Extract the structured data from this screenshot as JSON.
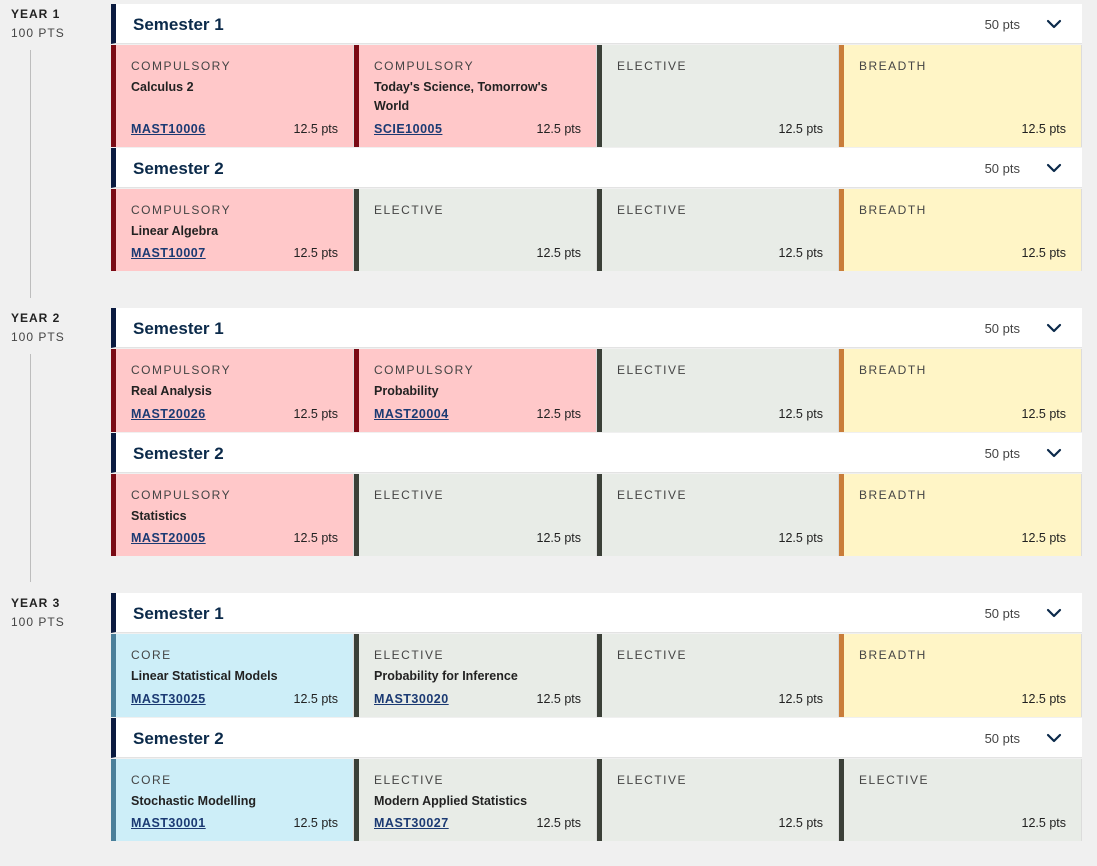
{
  "years": [
    {
      "label": "YEAR 1",
      "points": "100 PTS"
    },
    {
      "label": "YEAR 2",
      "points": "100 PTS"
    },
    {
      "label": "YEAR 3",
      "points": "100 PTS"
    }
  ],
  "semesters": [
    {
      "title": "Semester 1",
      "points": "50 pts",
      "subjects": [
        {
          "type": "COMPULSORY",
          "name": "Calculus 2",
          "code": "MAST10006",
          "points": "12.5 pts",
          "kind": "comp"
        },
        {
          "type": "COMPULSORY",
          "name": "Today's Science, Tomorrow's World",
          "code": "SCIE10005",
          "points": "12.5 pts",
          "kind": "comp"
        },
        {
          "type": "ELECTIVE",
          "name": "",
          "code": "",
          "points": "12.5 pts",
          "kind": "elec"
        },
        {
          "type": "BREADTH",
          "name": "",
          "code": "",
          "points": "12.5 pts",
          "kind": "bread"
        }
      ]
    },
    {
      "title": "Semester 2",
      "points": "50 pts",
      "subjects": [
        {
          "type": "COMPULSORY",
          "name": "Linear Algebra",
          "code": "MAST10007",
          "points": "12.5 pts",
          "kind": "comp"
        },
        {
          "type": "ELECTIVE",
          "name": "",
          "code": "",
          "points": "12.5 pts",
          "kind": "elec"
        },
        {
          "type": "ELECTIVE",
          "name": "",
          "code": "",
          "points": "12.5 pts",
          "kind": "elec"
        },
        {
          "type": "BREADTH",
          "name": "",
          "code": "",
          "points": "12.5 pts",
          "kind": "bread"
        }
      ]
    },
    {
      "title": "Semester 1",
      "points": "50 pts",
      "subjects": [
        {
          "type": "COMPULSORY",
          "name": "Real Analysis",
          "code": "MAST20026",
          "points": "12.5 pts",
          "kind": "comp"
        },
        {
          "type": "COMPULSORY",
          "name": "Probability",
          "code": "MAST20004",
          "points": "12.5 pts",
          "kind": "comp"
        },
        {
          "type": "ELECTIVE",
          "name": "",
          "code": "",
          "points": "12.5 pts",
          "kind": "elec"
        },
        {
          "type": "BREADTH",
          "name": "",
          "code": "",
          "points": "12.5 pts",
          "kind": "bread"
        }
      ]
    },
    {
      "title": "Semester 2",
      "points": "50 pts",
      "subjects": [
        {
          "type": "COMPULSORY",
          "name": "Statistics",
          "code": "MAST20005",
          "points": "12.5 pts",
          "kind": "comp"
        },
        {
          "type": "ELECTIVE",
          "name": "",
          "code": "",
          "points": "12.5 pts",
          "kind": "elec"
        },
        {
          "type": "ELECTIVE",
          "name": "",
          "code": "",
          "points": "12.5 pts",
          "kind": "elec"
        },
        {
          "type": "BREADTH",
          "name": "",
          "code": "",
          "points": "12.5 pts",
          "kind": "bread"
        }
      ]
    },
    {
      "title": "Semester 1",
      "points": "50 pts",
      "subjects": [
        {
          "type": "CORE",
          "name": "Linear Statistical Models",
          "code": "MAST30025",
          "points": "12.5 pts",
          "kind": "core"
        },
        {
          "type": "ELECTIVE",
          "name": "Probability for Inference",
          "code": "MAST30020",
          "points": "12.5 pts",
          "kind": "elec"
        },
        {
          "type": "ELECTIVE",
          "name": "",
          "code": "",
          "points": "12.5 pts",
          "kind": "elec"
        },
        {
          "type": "BREADTH",
          "name": "",
          "code": "",
          "points": "12.5 pts",
          "kind": "bread"
        }
      ]
    },
    {
      "title": "Semester 2",
      "points": "50 pts",
      "subjects": [
        {
          "type": "CORE",
          "name": "Stochastic Modelling",
          "code": "MAST30001",
          "points": "12.5 pts",
          "kind": "core"
        },
        {
          "type": "ELECTIVE",
          "name": "Modern Applied Statistics",
          "code": "MAST30027",
          "points": "12.5 pts",
          "kind": "elec"
        },
        {
          "type": "ELECTIVE",
          "name": "",
          "code": "",
          "points": "12.5 pts",
          "kind": "elec"
        },
        {
          "type": "ELECTIVE",
          "name": "",
          "code": "",
          "points": "12.5 pts",
          "kind": "elec"
        }
      ]
    }
  ],
  "icons": {
    "expand": "chevron-down-icon"
  },
  "colors": {
    "compulsory_bg": "#ffc8c9",
    "compulsory_bar": "#7a0a14",
    "elective_bg": "#e8ece7",
    "elective_bar": "#3b4038",
    "breadth_bg": "#fff5c6",
    "breadth_bar": "#c97d39",
    "core_bg": "#cdeef8",
    "core_bar": "#4a7f9a",
    "semester_bar": "#0a1a3f"
  }
}
